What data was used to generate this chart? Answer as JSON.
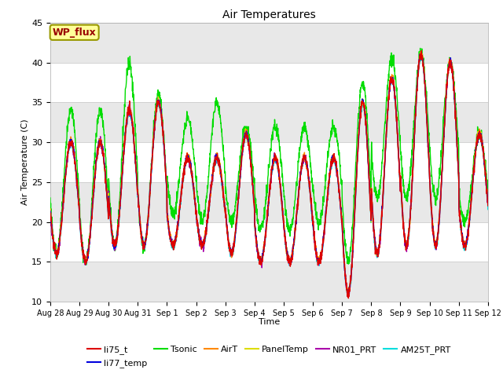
{
  "title": "Air Temperatures",
  "xlabel": "Time",
  "ylabel": "Air Temperature (C)",
  "ylim": [
    10,
    45
  ],
  "y_ticks": [
    10,
    15,
    20,
    25,
    30,
    35,
    40,
    45
  ],
  "x_tick_labels": [
    "Aug 28",
    "Aug 29",
    "Aug 30",
    "Aug 31",
    "Sep 1",
    "Sep 2",
    "Sep 3",
    "Sep 4",
    "Sep 5",
    "Sep 6",
    "Sep 7",
    "Sep 8",
    "Sep 9",
    "Sep 10",
    "Sep 11",
    "Sep 12"
  ],
  "line_colors": {
    "li75_t": "#dd0000",
    "li77_temp": "#0000dd",
    "Tsonic": "#00dd00",
    "AirT": "#ff8800",
    "PanelTemp": "#dddd00",
    "NR01_PRT": "#aa00aa",
    "AM25T_PRT": "#00dddd"
  },
  "annotation_text": "WP_flux",
  "annotation_color": "#990000",
  "annotation_bg": "#ffff99",
  "annotation_border": "#999900",
  "fig_bg": "#ffffff",
  "plot_bg": "#ffffff",
  "band_color": "#e8e8e8",
  "grid_color": "#cccccc",
  "day_mins": [
    16,
    15,
    17,
    17,
    17,
    17,
    16,
    15,
    15,
    15,
    11,
    16,
    17,
    17,
    17
  ],
  "day_maxs": [
    30,
    30,
    34,
    35,
    28,
    28,
    31,
    28,
    28,
    28,
    35,
    38,
    41,
    40,
    31
  ],
  "tsonic_mins": [
    16,
    15,
    17,
    17,
    21,
    20,
    20,
    19,
    19,
    20,
    15,
    23,
    23,
    23,
    20
  ],
  "tsonic_maxs": [
    34,
    34,
    40,
    36,
    33,
    35,
    32,
    32,
    32,
    32,
    37.5,
    40.5,
    41,
    40,
    31
  ]
}
